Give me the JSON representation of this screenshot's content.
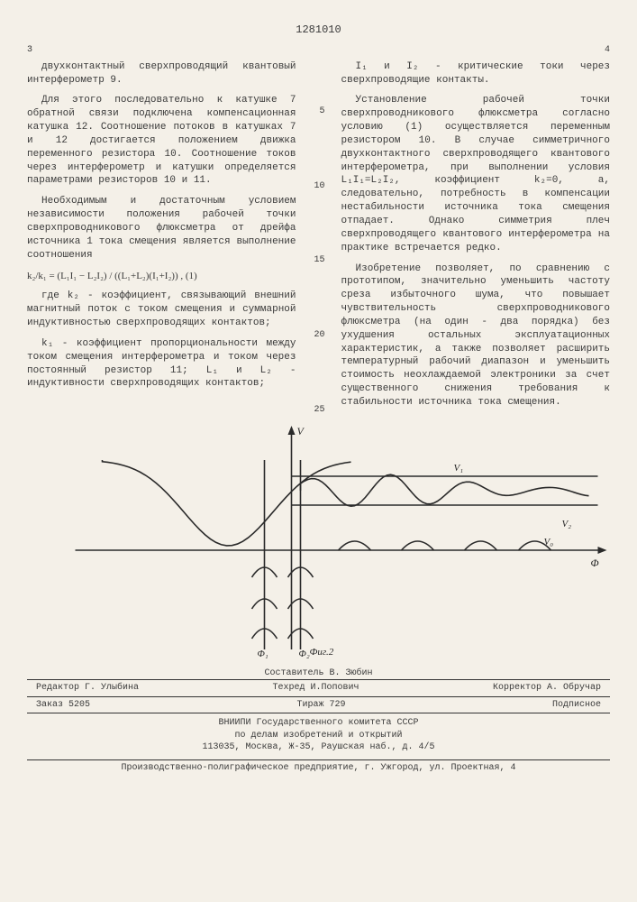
{
  "doc_number": "1281010",
  "page_left": "3",
  "page_right": "4",
  "line_labels": [
    "5",
    "10",
    "15",
    "20",
    "25"
  ],
  "col_left": {
    "p1": "двухконтактный сверхпроводящий квантовый интерферометр 9.",
    "p2": "Для этого последовательно к катушке 7 обратной связи подключена компенсационная катушка 12. Соотношение потоков в катушках 7 и 12 достигается положением движка переменного резистора 10. Соотношение токов через интерферометр и катушки определяется параметрами резисторов 10 и 11.",
    "p3": "Необходимым и достаточным условием независимости положения рабочей точки сверхпроводникового флюксметра от дрейфа источника 1 тока смещения является выполнение соотношения",
    "eq": "k₂/k₁ = (L₁I₁ − L₂I₂) / ((L₁+L₂)(I₁+I₂)) ,    (1)",
    "p4": "где k₂ - коэффициент, связывающий внешний магнитный поток с током смещения и суммарной индуктивностью сверхпроводящих контактов;",
    "p5": "k₁ - коэффициент пропорциональности между током смещения интерферометра и током через постоянный резистор 11; L₁ и L₂ - индуктивности сверхпроводящих контактов;"
  },
  "col_right": {
    "p1": "I₁ и I₂ - критические токи через сверхпроводящие контакты.",
    "p2": "Установление рабочей точки сверхпроводникового флюксметра согласно условию (1) осуществляется переменным резистором 10. В случае симметричного двухконтактного сверхпроводящего квантового интерферометра, при выполнении условия L₁I₁=L₂I₂, коэффициент k₂=0, а, следовательно, потребность в компенсации нестабильности источника тока смещения отпадает. Однако симметрия плеч сверхпроводящего квантового интерферометра на практике встречается редко.",
    "p3": "Изобретение позволяет, по сравнению с прототипом, значительно уменьшить частоту среза избыточного шума, что повышает чувствительность сверхпроводникового флюксметра (на один - два порядка) без ухудшения остальных эксплуатационных характеристик, а также позволяет расширить температурный рабочий диапазон и уменьшить стоимость неохлаждаемой электроники за счет существенного снижения требования к стабильности источника тока смещения."
  },
  "figure": {
    "axis_labels": {
      "y": "V",
      "x": "Φ"
    },
    "phi_marks": [
      "Φ₁",
      "Φ₂"
    ],
    "v_marks": [
      "V₁",
      "V₂",
      "V₀"
    ],
    "caption": "Фиг.2",
    "stroke": "#2a2a2a",
    "stroke_width": 1.6
  },
  "footer": {
    "composer_label": "Составитель В. Зюбин",
    "editor": "Редактор Г. Улыбина",
    "techred": "Техред И.Попович",
    "corrector": "Корректор А. Обручар",
    "order": "Заказ 5205",
    "tirazh": "Тираж 729",
    "sign": "Подписное",
    "org1": "ВНИИПИ Государственного комитета СССР",
    "org2": "по делам изобретений и открытий",
    "addr": "113035, Москва, Ж-35, Раушская наб., д. 4/5",
    "print": "Производственно-полиграфическое предприятие, г. Ужгород, ул. Проектная, 4"
  }
}
